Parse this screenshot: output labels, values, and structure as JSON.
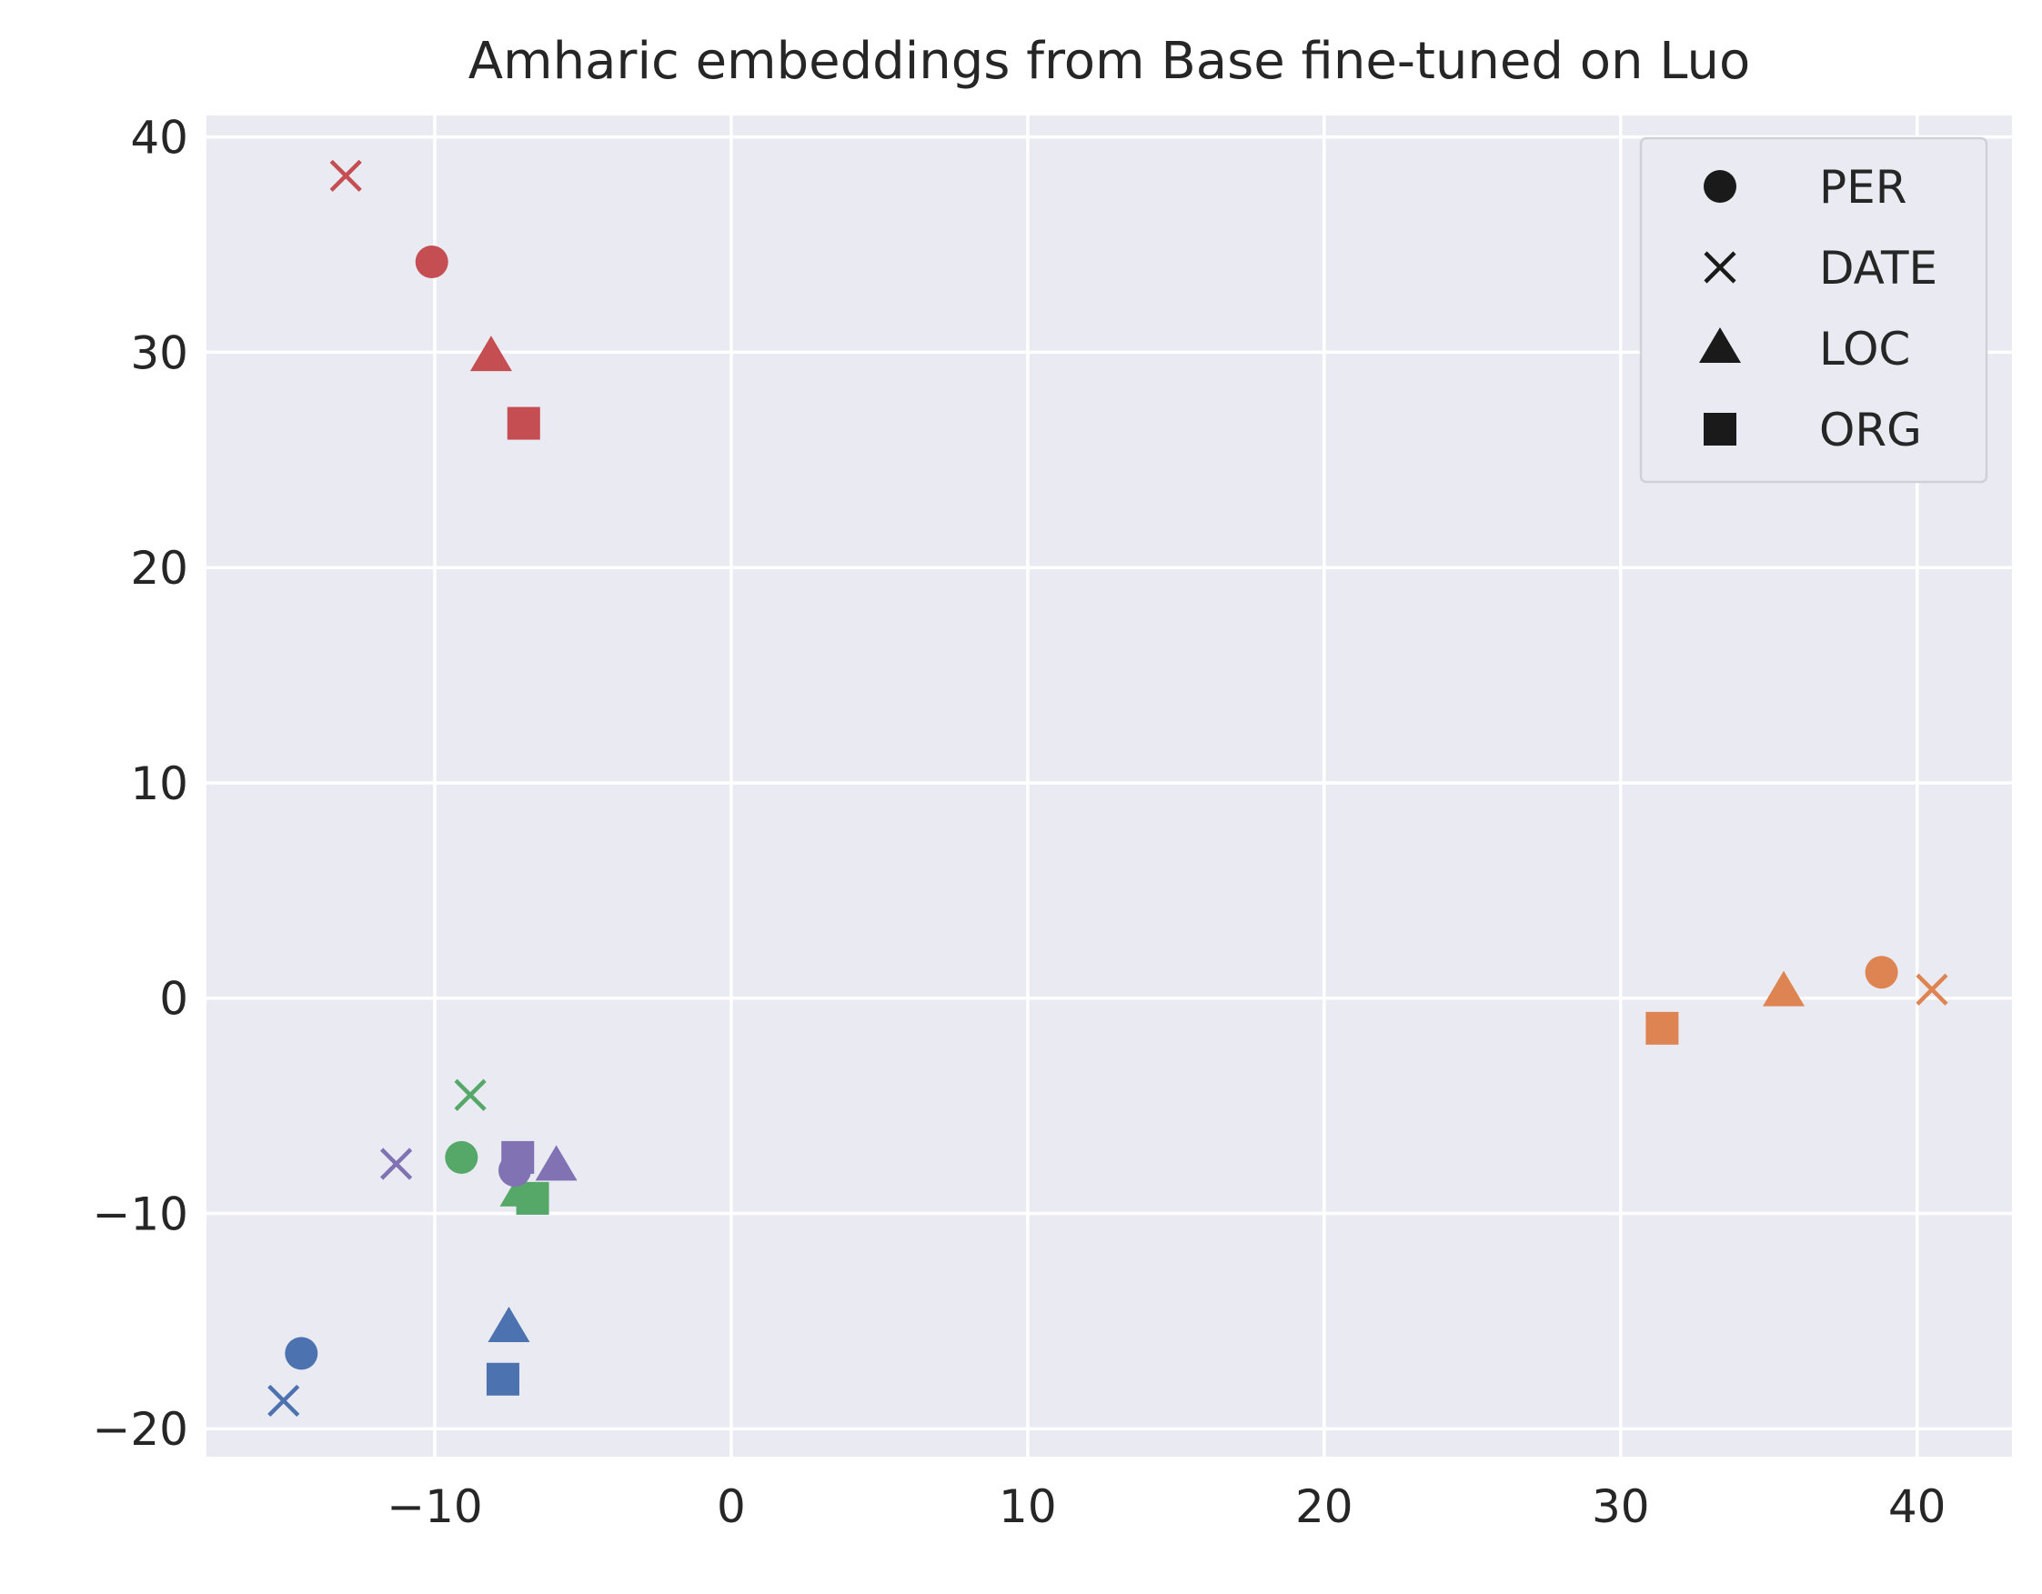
{
  "chart_data": {
    "type": "scatter",
    "title": "Amharic embeddings from Base fine-tuned on Luo",
    "xlabel": "",
    "ylabel": "",
    "xlim": [
      -17.7,
      43.2
    ],
    "ylim": [
      -21.3,
      41.0
    ],
    "xticks": [
      -10,
      0,
      10,
      20,
      30,
      40
    ],
    "yticks": [
      -20,
      -10,
      0,
      10,
      20,
      30,
      40
    ],
    "xtick_labels": [
      "−10",
      "0",
      "10",
      "20",
      "30",
      "40"
    ],
    "ytick_labels": [
      "−20",
      "−10",
      "0",
      "10",
      "20",
      "30",
      "40"
    ],
    "grid": true,
    "background": "#eaeaf2",
    "legend": {
      "position": "top-right",
      "entries": [
        {
          "label": "PER",
          "marker": "circle"
        },
        {
          "label": "DATE",
          "marker": "x"
        },
        {
          "label": "LOC",
          "marker": "triangle"
        },
        {
          "label": "ORG",
          "marker": "square"
        }
      ]
    },
    "points": [
      {
        "x": -13.0,
        "y": 38.2,
        "marker": "x",
        "color": "#c44e52"
      },
      {
        "x": -10.1,
        "y": 34.2,
        "marker": "circle",
        "color": "#c44e52"
      },
      {
        "x": -8.1,
        "y": 29.8,
        "marker": "triangle",
        "color": "#c44e52"
      },
      {
        "x": -7.0,
        "y": 26.7,
        "marker": "square",
        "color": "#c44e52"
      },
      {
        "x": 38.8,
        "y": 1.2,
        "marker": "circle",
        "color": "#dd8452"
      },
      {
        "x": 40.5,
        "y": 0.4,
        "marker": "x",
        "color": "#dd8452"
      },
      {
        "x": 35.5,
        "y": 0.3,
        "marker": "triangle",
        "color": "#dd8452"
      },
      {
        "x": 31.4,
        "y": -1.4,
        "marker": "square",
        "color": "#dd8452"
      },
      {
        "x": -8.8,
        "y": -4.5,
        "marker": "x",
        "color": "#55a868"
      },
      {
        "x": -9.1,
        "y": -7.4,
        "marker": "circle",
        "color": "#55a868"
      },
      {
        "x": -7.1,
        "y": -9.0,
        "marker": "triangle",
        "color": "#55a868"
      },
      {
        "x": -6.7,
        "y": -9.3,
        "marker": "square",
        "color": "#55a868"
      },
      {
        "x": -11.3,
        "y": -7.7,
        "marker": "x",
        "color": "#8172b3"
      },
      {
        "x": -7.3,
        "y": -8.0,
        "marker": "circle",
        "color": "#8172b3"
      },
      {
        "x": -5.9,
        "y": -7.8,
        "marker": "triangle",
        "color": "#8172b3"
      },
      {
        "x": -7.2,
        "y": -7.4,
        "marker": "square",
        "color": "#8172b3"
      },
      {
        "x": -14.5,
        "y": -16.5,
        "marker": "circle",
        "color": "#4c72b0"
      },
      {
        "x": -15.1,
        "y": -18.7,
        "marker": "x",
        "color": "#4c72b0"
      },
      {
        "x": -7.5,
        "y": -15.3,
        "marker": "triangle",
        "color": "#4c72b0"
      },
      {
        "x": -7.7,
        "y": -17.7,
        "marker": "square",
        "color": "#4c72b0"
      }
    ]
  }
}
